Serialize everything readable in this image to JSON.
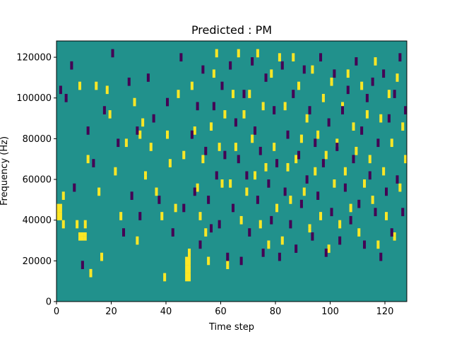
{
  "chart_data": {
    "type": "heatmap",
    "title": "Predicted : PM",
    "xlabel": "Time step",
    "ylabel": "Frequency (Hz)",
    "xlim": [
      0,
      128
    ],
    "ylim": [
      0,
      128000
    ],
    "x_ticks": [
      0,
      20,
      40,
      60,
      80,
      100,
      120
    ],
    "x_tick_labels": [
      "0",
      "20",
      "40",
      "60",
      "80",
      "100",
      "120"
    ],
    "y_ticks": [
      0,
      20000,
      40000,
      60000,
      80000,
      100000,
      120000
    ],
    "y_tick_labels": [
      "0",
      "20000",
      "40000",
      "60000",
      "80000",
      "100000",
      "120000"
    ],
    "n_time_steps": 128,
    "n_freq_bins": 64,
    "bin_height_hz": 2000,
    "colormap": "viridis",
    "colors": {
      "background": "#21918c",
      "high": "#fde725",
      "low": "#440154"
    },
    "grid": false,
    "high_cells": [
      [
        0,
        20
      ],
      [
        0,
        21
      ],
      [
        0,
        22
      ],
      [
        0,
        23
      ],
      [
        1,
        20
      ],
      [
        1,
        21
      ],
      [
        1,
        22
      ],
      [
        1,
        23
      ],
      [
        2,
        18
      ],
      [
        2,
        19
      ],
      [
        2,
        25
      ],
      [
        2,
        26
      ],
      [
        7,
        18
      ],
      [
        7,
        19
      ],
      [
        8,
        15
      ],
      [
        8,
        16
      ],
      [
        8,
        52
      ],
      [
        8,
        53
      ],
      [
        9,
        15
      ],
      [
        9,
        16
      ],
      [
        10,
        15
      ],
      [
        10,
        16
      ],
      [
        10,
        18
      ],
      [
        10,
        19
      ],
      [
        11,
        34
      ],
      [
        11,
        35
      ],
      [
        12,
        6
      ],
      [
        12,
        7
      ],
      [
        14,
        52
      ],
      [
        14,
        53
      ],
      [
        15,
        26
      ],
      [
        15,
        27
      ],
      [
        16,
        10
      ],
      [
        16,
        11
      ],
      [
        18,
        51
      ],
      [
        18,
        52
      ],
      [
        19,
        45
      ],
      [
        19,
        46
      ],
      [
        21,
        31
      ],
      [
        21,
        32
      ],
      [
        23,
        20
      ],
      [
        23,
        21
      ],
      [
        25,
        38
      ],
      [
        25,
        39
      ],
      [
        28,
        48
      ],
      [
        28,
        49
      ],
      [
        29,
        14
      ],
      [
        29,
        15
      ],
      [
        30,
        40
      ],
      [
        30,
        41
      ],
      [
        31,
        43
      ],
      [
        31,
        44
      ],
      [
        32,
        30
      ],
      [
        32,
        31
      ],
      [
        34,
        37
      ],
      [
        34,
        38
      ],
      [
        36,
        26
      ],
      [
        36,
        27
      ],
      [
        38,
        20
      ],
      [
        38,
        21
      ],
      [
        39,
        5
      ],
      [
        39,
        6
      ],
      [
        40,
        40
      ],
      [
        40,
        41
      ],
      [
        41,
        33
      ],
      [
        41,
        34
      ],
      [
        43,
        22
      ],
      [
        43,
        23
      ],
      [
        44,
        50
      ],
      [
        44,
        51
      ],
      [
        46,
        35
      ],
      [
        46,
        36
      ],
      [
        47,
        5
      ],
      [
        47,
        6
      ],
      [
        47,
        7
      ],
      [
        47,
        8
      ],
      [
        47,
        9
      ],
      [
        47,
        10
      ],
      [
        48,
        5
      ],
      [
        48,
        6
      ],
      [
        48,
        7
      ],
      [
        48,
        8
      ],
      [
        48,
        9
      ],
      [
        48,
        10
      ],
      [
        48,
        11
      ],
      [
        48,
        12
      ],
      [
        49,
        52
      ],
      [
        49,
        53
      ],
      [
        50,
        41
      ],
      [
        50,
        42
      ],
      [
        51,
        27
      ],
      [
        51,
        28
      ],
      [
        52,
        20
      ],
      [
        52,
        21
      ],
      [
        53,
        34
      ],
      [
        53,
        35
      ],
      [
        54,
        16
      ],
      [
        54,
        17
      ],
      [
        55,
        9
      ],
      [
        55,
        10
      ],
      [
        56,
        42
      ],
      [
        56,
        43
      ],
      [
        57,
        55
      ],
      [
        57,
        56
      ],
      [
        58,
        60
      ],
      [
        58,
        61
      ],
      [
        59,
        37
      ],
      [
        59,
        38
      ],
      [
        60,
        28
      ],
      [
        60,
        29
      ],
      [
        61,
        45
      ],
      [
        61,
        46
      ],
      [
        62,
        8
      ],
      [
        62,
        9
      ],
      [
        63,
        28
      ],
      [
        63,
        29
      ],
      [
        64,
        50
      ],
      [
        64,
        51
      ],
      [
        65,
        37
      ],
      [
        65,
        38
      ],
      [
        66,
        60
      ],
      [
        66,
        61
      ],
      [
        67,
        19
      ],
      [
        67,
        20
      ],
      [
        68,
        45
      ],
      [
        68,
        46
      ],
      [
        69,
        26
      ],
      [
        69,
        27
      ],
      [
        70,
        50
      ],
      [
        70,
        51
      ],
      [
        71,
        39
      ],
      [
        71,
        40
      ],
      [
        72,
        30
      ],
      [
        72,
        31
      ],
      [
        73,
        60
      ],
      [
        73,
        61
      ],
      [
        74,
        18
      ],
      [
        74,
        19
      ],
      [
        75,
        47
      ],
      [
        75,
        48
      ],
      [
        76,
        32
      ],
      [
        76,
        33
      ],
      [
        77,
        13
      ],
      [
        77,
        14
      ],
      [
        78,
        55
      ],
      [
        78,
        56
      ],
      [
        79,
        37
      ],
      [
        79,
        38
      ],
      [
        80,
        22
      ],
      [
        80,
        23
      ],
      [
        81,
        59
      ],
      [
        81,
        60
      ],
      [
        82,
        14
      ],
      [
        82,
        15
      ],
      [
        83,
        47
      ],
      [
        83,
        48
      ],
      [
        84,
        32
      ],
      [
        84,
        33
      ],
      [
        85,
        24
      ],
      [
        85,
        25
      ],
      [
        86,
        59
      ],
      [
        86,
        60
      ],
      [
        87,
        34
      ],
      [
        87,
        35
      ],
      [
        88,
        52
      ],
      [
        88,
        53
      ],
      [
        89,
        39
      ],
      [
        89,
        40
      ],
      [
        90,
        26
      ],
      [
        90,
        27
      ],
      [
        91,
        44
      ],
      [
        91,
        45
      ],
      [
        92,
        17
      ],
      [
        92,
        18
      ],
      [
        93,
        56
      ],
      [
        93,
        57
      ],
      [
        94,
        31
      ],
      [
        94,
        32
      ],
      [
        95,
        40
      ],
      [
        95,
        41
      ],
      [
        96,
        20
      ],
      [
        96,
        21
      ],
      [
        97,
        49
      ],
      [
        97,
        50
      ],
      [
        98,
        35
      ],
      [
        98,
        36
      ],
      [
        99,
        12
      ],
      [
        99,
        13
      ],
      [
        100,
        53
      ],
      [
        100,
        54
      ],
      [
        101,
        28
      ],
      [
        101,
        29
      ],
      [
        102,
        38
      ],
      [
        102,
        39
      ],
      [
        103,
        18
      ],
      [
        103,
        19
      ],
      [
        104,
        47
      ],
      [
        104,
        48
      ],
      [
        105,
        31
      ],
      [
        105,
        32
      ],
      [
        106,
        55
      ],
      [
        106,
        56
      ],
      [
        107,
        22
      ],
      [
        107,
        23
      ],
      [
        108,
        42
      ],
      [
        108,
        43
      ],
      [
        109,
        36
      ],
      [
        109,
        37
      ],
      [
        110,
        16
      ],
      [
        110,
        17
      ],
      [
        111,
        52
      ],
      [
        111,
        53
      ],
      [
        112,
        28
      ],
      [
        112,
        29
      ],
      [
        113,
        45
      ],
      [
        113,
        46
      ],
      [
        114,
        34
      ],
      [
        114,
        35
      ],
      [
        115,
        24
      ],
      [
        115,
        25
      ],
      [
        116,
        58
      ],
      [
        116,
        59
      ],
      [
        117,
        13
      ],
      [
        117,
        14
      ],
      [
        118,
        44
      ],
      [
        118,
        45
      ],
      [
        119,
        31
      ],
      [
        119,
        32
      ],
      [
        120,
        20
      ],
      [
        120,
        21
      ],
      [
        121,
        50
      ],
      [
        121,
        51
      ],
      [
        122,
        38
      ],
      [
        122,
        39
      ],
      [
        123,
        15
      ],
      [
        123,
        16
      ],
      [
        124,
        54
      ],
      [
        124,
        55
      ],
      [
        125,
        27
      ],
      [
        125,
        28
      ],
      [
        126,
        42
      ],
      [
        126,
        43
      ],
      [
        127,
        34
      ],
      [
        127,
        35
      ]
    ],
    "low_cells": [
      [
        1,
        51
      ],
      [
        1,
        52
      ],
      [
        3,
        49
      ],
      [
        3,
        50
      ],
      [
        5,
        57
      ],
      [
        5,
        58
      ],
      [
        6,
        27
      ],
      [
        6,
        28
      ],
      [
        9,
        8
      ],
      [
        9,
        9
      ],
      [
        11,
        41
      ],
      [
        11,
        42
      ],
      [
        13,
        33
      ],
      [
        13,
        34
      ],
      [
        17,
        46
      ],
      [
        17,
        47
      ],
      [
        20,
        60
      ],
      [
        20,
        61
      ],
      [
        22,
        38
      ],
      [
        22,
        39
      ],
      [
        24,
        16
      ],
      [
        24,
        17
      ],
      [
        26,
        53
      ],
      [
        26,
        54
      ],
      [
        27,
        25
      ],
      [
        27,
        26
      ],
      [
        29,
        41
      ],
      [
        29,
        42
      ],
      [
        30,
        20
      ],
      [
        30,
        21
      ],
      [
        33,
        54
      ],
      [
        33,
        55
      ],
      [
        35,
        44
      ],
      [
        35,
        45
      ],
      [
        37,
        24
      ],
      [
        37,
        25
      ],
      [
        40,
        48
      ],
      [
        40,
        49
      ],
      [
        42,
        16
      ],
      [
        42,
        17
      ],
      [
        45,
        59
      ],
      [
        45,
        60
      ],
      [
        46,
        22
      ],
      [
        46,
        23
      ],
      [
        49,
        40
      ],
      [
        49,
        41
      ],
      [
        50,
        26
      ],
      [
        50,
        27
      ],
      [
        51,
        47
      ],
      [
        51,
        48
      ],
      [
        52,
        13
      ],
      [
        52,
        14
      ],
      [
        53,
        56
      ],
      [
        53,
        57
      ],
      [
        54,
        36
      ],
      [
        54,
        37
      ],
      [
        55,
        24
      ],
      [
        55,
        25
      ],
      [
        56,
        17
      ],
      [
        56,
        18
      ],
      [
        57,
        47
      ],
      [
        57,
        48
      ],
      [
        58,
        30
      ],
      [
        58,
        31
      ],
      [
        59,
        18
      ],
      [
        59,
        19
      ],
      [
        60,
        52
      ],
      [
        60,
        53
      ],
      [
        61,
        35
      ],
      [
        61,
        36
      ],
      [
        62,
        10
      ],
      [
        62,
        11
      ],
      [
        63,
        57
      ],
      [
        63,
        58
      ],
      [
        64,
        22
      ],
      [
        64,
        23
      ],
      [
        65,
        43
      ],
      [
        65,
        44
      ],
      [
        66,
        34
      ],
      [
        66,
        35
      ],
      [
        67,
        9
      ],
      [
        67,
        10
      ],
      [
        68,
        50
      ],
      [
        68,
        51
      ],
      [
        69,
        30
      ],
      [
        69,
        31
      ],
      [
        70,
        16
      ],
      [
        70,
        17
      ],
      [
        71,
        58
      ],
      [
        71,
        59
      ],
      [
        72,
        41
      ],
      [
        72,
        42
      ],
      [
        73,
        24
      ],
      [
        73,
        25
      ],
      [
        74,
        36
      ],
      [
        74,
        37
      ],
      [
        75,
        11
      ],
      [
        75,
        12
      ],
      [
        76,
        54
      ],
      [
        76,
        55
      ],
      [
        77,
        28
      ],
      [
        77,
        29
      ],
      [
        78,
        19
      ],
      [
        78,
        20
      ],
      [
        79,
        46
      ],
      [
        79,
        47
      ],
      [
        80,
        33
      ],
      [
        80,
        34
      ],
      [
        81,
        10
      ],
      [
        81,
        11
      ],
      [
        82,
        57
      ],
      [
        82,
        58
      ],
      [
        83,
        26
      ],
      [
        83,
        27
      ],
      [
        84,
        40
      ],
      [
        84,
        41
      ],
      [
        85,
        18
      ],
      [
        85,
        19
      ],
      [
        86,
        50
      ],
      [
        86,
        51
      ],
      [
        87,
        12
      ],
      [
        87,
        13
      ],
      [
        88,
        35
      ],
      [
        88,
        36
      ],
      [
        89,
        23
      ],
      [
        89,
        24
      ],
      [
        90,
        56
      ],
      [
        90,
        57
      ],
      [
        91,
        29
      ],
      [
        91,
        30
      ],
      [
        92,
        46
      ],
      [
        92,
        47
      ],
      [
        93,
        15
      ],
      [
        93,
        16
      ],
      [
        94,
        38
      ],
      [
        94,
        39
      ],
      [
        95,
        25
      ],
      [
        95,
        26
      ],
      [
        96,
        59
      ],
      [
        96,
        60
      ],
      [
        97,
        33
      ],
      [
        97,
        34
      ],
      [
        98,
        11
      ],
      [
        98,
        12
      ],
      [
        99,
        43
      ],
      [
        99,
        44
      ],
      [
        100,
        21
      ],
      [
        100,
        22
      ],
      [
        101,
        55
      ],
      [
        101,
        56
      ],
      [
        102,
        37
      ],
      [
        102,
        38
      ],
      [
        103,
        14
      ],
      [
        103,
        15
      ],
      [
        104,
        46
      ],
      [
        104,
        47
      ],
      [
        105,
        27
      ],
      [
        105,
        28
      ],
      [
        106,
        51
      ],
      [
        106,
        52
      ],
      [
        107,
        19
      ],
      [
        107,
        20
      ],
      [
        108,
        34
      ],
      [
        108,
        35
      ],
      [
        109,
        58
      ],
      [
        109,
        59
      ],
      [
        110,
        23
      ],
      [
        110,
        24
      ],
      [
        111,
        41
      ],
      [
        111,
        42
      ],
      [
        112,
        13
      ],
      [
        112,
        14
      ],
      [
        113,
        49
      ],
      [
        113,
        50
      ],
      [
        114,
        30
      ],
      [
        114,
        31
      ],
      [
        115,
        53
      ],
      [
        115,
        54
      ],
      [
        116,
        21
      ],
      [
        116,
        22
      ],
      [
        117,
        38
      ],
      [
        117,
        39
      ],
      [
        118,
        10
      ],
      [
        118,
        11
      ],
      [
        119,
        55
      ],
      [
        119,
        56
      ],
      [
        120,
        26
      ],
      [
        120,
        27
      ],
      [
        121,
        44
      ],
      [
        121,
        45
      ],
      [
        122,
        16
      ],
      [
        122,
        17
      ],
      [
        123,
        50
      ],
      [
        123,
        51
      ],
      [
        124,
        29
      ],
      [
        124,
        30
      ],
      [
        125,
        59
      ],
      [
        125,
        60
      ],
      [
        126,
        21
      ],
      [
        126,
        22
      ],
      [
        127,
        46
      ],
      [
        127,
        47
      ]
    ]
  }
}
